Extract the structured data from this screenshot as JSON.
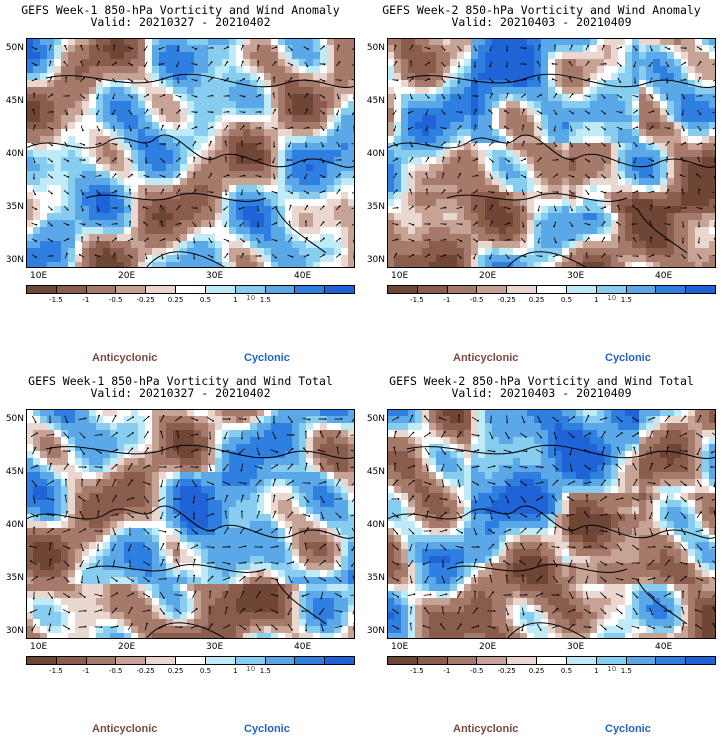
{
  "panels": [
    {
      "title": "GEFS Week-1 850-hPa Vorticity and Wind Anomaly",
      "valid": "Valid: 20210327 - 20210402",
      "variant": 1
    },
    {
      "title": "GEFS Week-2 850-hPa Vorticity and Wind Anomaly",
      "valid": "Valid: 20210403 - 20210409",
      "variant": 2
    },
    {
      "title": "GEFS Week-1 850-hPa Vorticity and Wind Total",
      "valid": "Valid: 20210327 - 20210402",
      "variant": 3
    },
    {
      "title": "GEFS Week-2 850-hPa Vorticity and Wind Total",
      "valid": "Valid: 20210403 - 20210409",
      "variant": 4
    }
  ],
  "axes": {
    "lat_labels": [
      "50N",
      "45N",
      "40N",
      "35N",
      "30N"
    ],
    "lon_labels": [
      "10E",
      "20E",
      "30E",
      "40E"
    ]
  },
  "colorbar": {
    "labels": [
      "-1.5",
      "-1",
      "-0.5",
      "-0.25",
      "0.25",
      "0.5",
      "1",
      "1.5"
    ],
    "scale_text": "10",
    "colors": [
      "#6f4536",
      "#8a5c4c",
      "#a67a6a",
      "#c7a396",
      "#ead7cf",
      "#ffffff",
      "#bfeaf8",
      "#86cdf0",
      "#5aa8e8",
      "#2f7fe0",
      "#1f63d6"
    ]
  },
  "legend": {
    "anticyclonic": "Anticyclonic",
    "cyclonic": "Cyclonic",
    "anticyclonic_color": "#7b4a3c",
    "cyclonic_color": "#1f63c6"
  }
}
